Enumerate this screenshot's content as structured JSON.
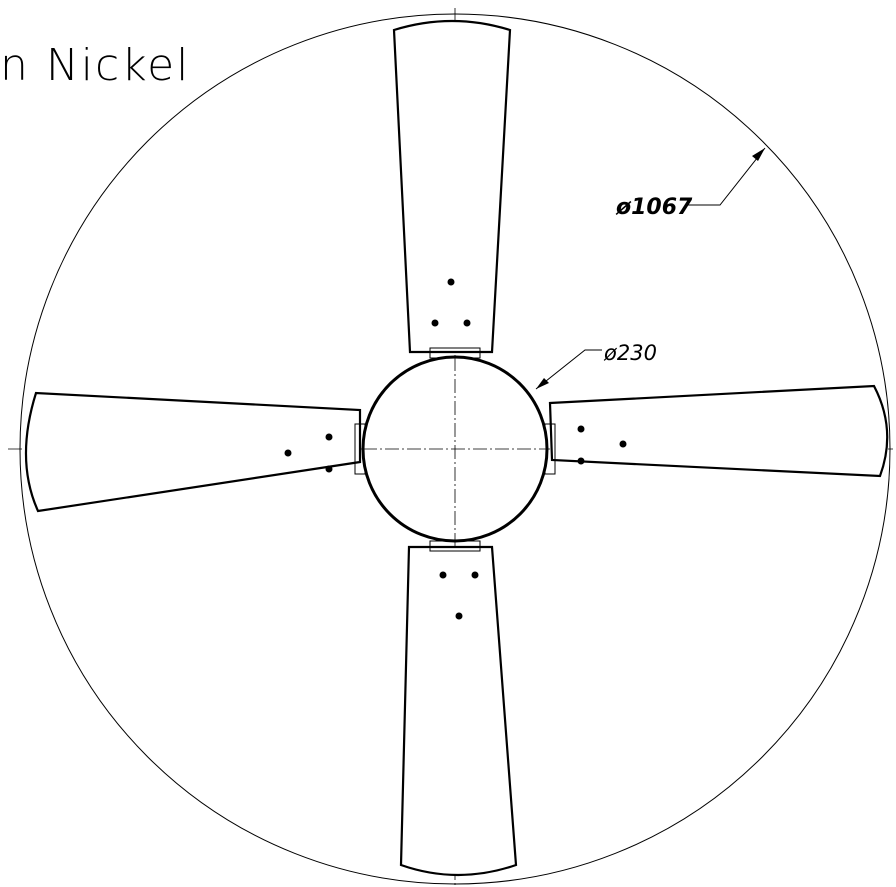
{
  "title": "n Nickel",
  "dimensions": {
    "outer": "ø1067",
    "hub": "ø230"
  }
}
